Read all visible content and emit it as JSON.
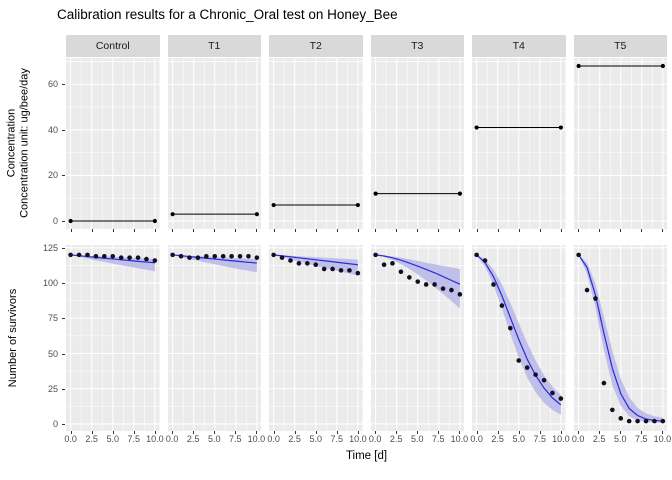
{
  "chart_data": {
    "type": "line",
    "title": "Calibration results for a Chronic_Oral test on Honey_Bee",
    "facets": [
      "Control",
      "T1",
      "T2",
      "T3",
      "T4",
      "T5"
    ],
    "x_axis": {
      "label": "Time [d]",
      "ticks": [
        0,
        2.5,
        5,
        7.5,
        10
      ],
      "tick_labels": [
        "0.0",
        "2.5",
        "5.0",
        "7.5",
        "10.0"
      ],
      "minor_ticks": [
        1.25,
        3.75,
        6.25,
        8.75
      ],
      "lim": [
        -0.55,
        10.55
      ]
    },
    "top_row": {
      "ylabel_line1": "Concentration",
      "ylabel_line2": "Concentration unit: ug/bee/day",
      "y_ticks": [
        0,
        20,
        40,
        60
      ],
      "y_tick_labels": [
        "0",
        "20",
        "40",
        "60"
      ],
      "y_minor": [
        10,
        30,
        50,
        70
      ],
      "ylim": [
        -3.5,
        71.5
      ],
      "series_note": "constant exposure concentration from day 0 to day 10, points at both ends",
      "concentration": {
        "Control": 0,
        "T1": 3,
        "T2": 7,
        "T3": 12,
        "T4": 41,
        "T5": 68
      }
    },
    "bottom_row": {
      "ylabel": "Number of survivors",
      "y_ticks": [
        0,
        25,
        50,
        75,
        100,
        125
      ],
      "y_tick_labels": [
        "0",
        "25",
        "50",
        "75",
        "100",
        "125"
      ],
      "y_minor": [
        12.5,
        37.5,
        62.5,
        87.5,
        112.5
      ],
      "ylim": [
        -5,
        127
      ],
      "days": [
        0,
        1,
        2,
        3,
        4,
        5,
        6,
        7,
        8,
        9,
        10
      ],
      "observed": {
        "Control": [
          120,
          120,
          120,
          119,
          119,
          119,
          118,
          118,
          118,
          117,
          116
        ],
        "T1": [
          120,
          119,
          118,
          118,
          119,
          119,
          119,
          119,
          119,
          119,
          118
        ],
        "T2": [
          120,
          118,
          116,
          114,
          114,
          113,
          110,
          110,
          109,
          109,
          107
        ],
        "T3": [
          120,
          113,
          114,
          108,
          104,
          101,
          99,
          99,
          96,
          95,
          92
        ],
        "T4": [
          120,
          116,
          99,
          84,
          68,
          45,
          40,
          35,
          31,
          22,
          18
        ],
        "T5": [
          120,
          95,
          89,
          29,
          10,
          4,
          2,
          2,
          2,
          2,
          2
        ]
      },
      "fit": {
        "Control": [
          120,
          119.4,
          118.8,
          118.2,
          117.6,
          117.1,
          116.5,
          116.0,
          115.4,
          114.9,
          114.4
        ],
        "T1": [
          120,
          119.4,
          118.8,
          118.2,
          117.6,
          117.0,
          116.4,
          115.8,
          115.3,
          114.7,
          114.2
        ],
        "T2": [
          120,
          119.3,
          118.6,
          117.9,
          117.2,
          116.5,
          115.8,
          115.1,
          114.4,
          113.7,
          113.0
        ],
        "T3": [
          120,
          119.2,
          117.9,
          116.2,
          114.2,
          112.0,
          109.7,
          107.3,
          104.6,
          101.9,
          99.2
        ],
        "T4": [
          120,
          114.5,
          104.5,
          91.0,
          75.5,
          60.0,
          46.0,
          34.5,
          25.5,
          18.5,
          13.5
        ],
        "T5": [
          120,
          111.0,
          91.5,
          64.5,
          39.5,
          21.5,
          11.0,
          6.0,
          3.5,
          2.5,
          2.0
        ]
      },
      "ribbon_upper": {
        "Control": [
          120,
          119.7,
          119.4,
          119.1,
          118.8,
          118.6,
          118.3,
          118.0,
          117.7,
          117.4,
          117.1
        ],
        "T1": [
          120,
          119.7,
          119.4,
          119.1,
          118.8,
          118.5,
          118.2,
          117.9,
          117.6,
          117.3,
          117.0
        ],
        "T2": [
          120,
          119.7,
          119.4,
          119.0,
          118.7,
          118.4,
          118.0,
          117.7,
          117.3,
          117.0,
          116.6
        ],
        "T3": [
          120,
          119.6,
          118.9,
          118.0,
          116.9,
          115.7,
          114.5,
          113.3,
          112.2,
          111.1,
          110.0
        ],
        "T4": [
          120,
          117.0,
          109.5,
          99.0,
          86.0,
          71.5,
          57.5,
          45.0,
          34.5,
          26.5,
          20.5
        ],
        "T5": [
          120,
          114.5,
          99.5,
          76.0,
          52.0,
          32.0,
          19.0,
          11.5,
          7.5,
          5.5,
          4.5
        ]
      },
      "ribbon_lower": {
        "Control": [
          120,
          118.6,
          117.3,
          116.1,
          114.9,
          113.8,
          112.7,
          111.6,
          110.5,
          109.4,
          108.3
        ],
        "T1": [
          120,
          118.5,
          117.1,
          115.8,
          114.5,
          113.3,
          112.1,
          110.9,
          109.8,
          108.7,
          107.6
        ],
        "T2": [
          120,
          118.3,
          116.7,
          115.2,
          113.7,
          112.2,
          110.8,
          109.4,
          108.0,
          106.7,
          105.4
        ],
        "T3": [
          120,
          118.6,
          116.4,
          113.5,
          110.0,
          106.1,
          101.8,
          97.2,
          92.3,
          87.2,
          82.0
        ],
        "T4": [
          120,
          111.5,
          98.5,
          82.0,
          64.0,
          47.0,
          33.0,
          22.5,
          15.0,
          10.0,
          6.5
        ],
        "T5": [
          120,
          106.5,
          82.5,
          52.5,
          27.5,
          13.0,
          5.5,
          2.5,
          1.5,
          1.0,
          0.8
        ]
      }
    },
    "legend_position": "none",
    "grid": true,
    "colors": {
      "panel_bg": "#ebebeb",
      "strip_bg": "#d9d9d9",
      "grid_line": "#ffffff",
      "fit_line": "#2b2bd5",
      "ribbon": "#bfbfe9",
      "observed_point": "#101020",
      "concentration_line": "#000000",
      "axis_text": "#4d4d4d"
    }
  }
}
